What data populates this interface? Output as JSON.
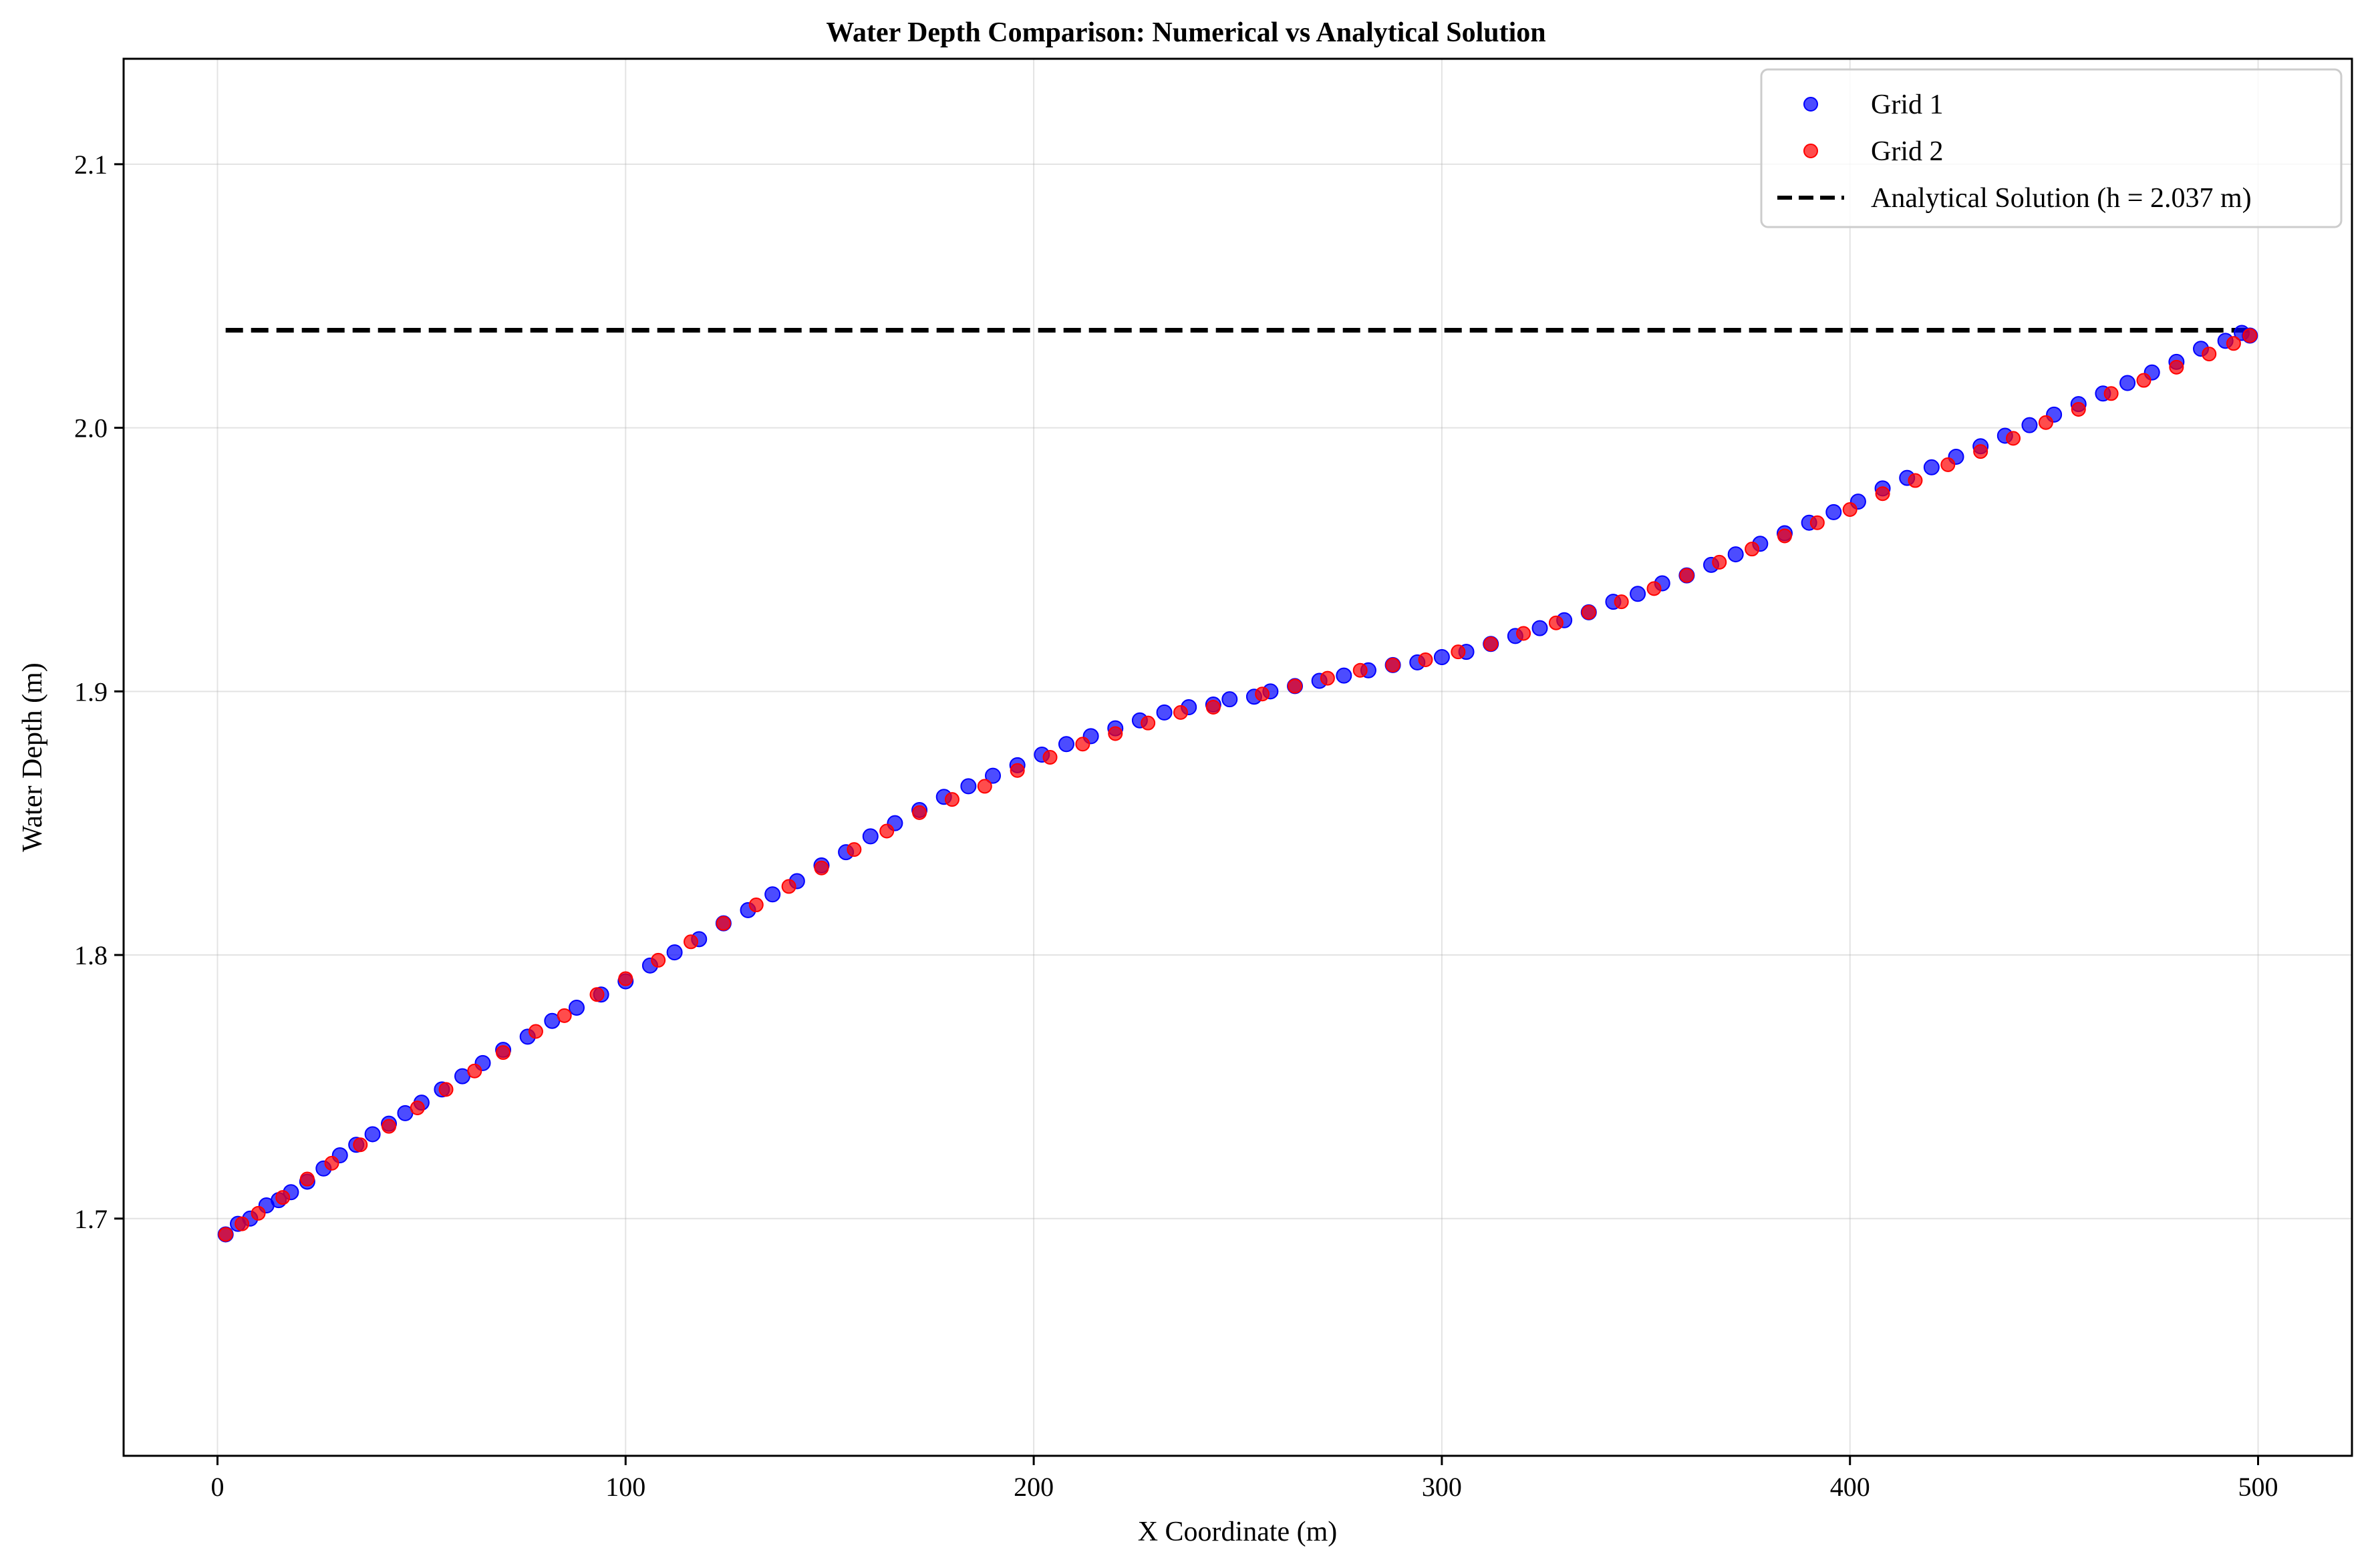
{
  "chart_data": {
    "type": "scatter",
    "title": "Water Depth Comparison: Numerical vs Analytical Solution",
    "xlabel": "X Coordinate (m)",
    "ylabel": "Water Depth (m)",
    "xlim": [
      -23,
      523
    ],
    "ylim": [
      1.61,
      2.14
    ],
    "xticks": [
      0,
      100,
      200,
      300,
      400,
      500
    ],
    "xtick_labels": [
      "0",
      "100",
      "200",
      "300",
      "400",
      "500"
    ],
    "yticks": [
      1.7,
      1.8,
      1.9,
      2.0,
      2.1
    ],
    "ytick_labels": [
      "1.7",
      "1.8",
      "1.9",
      "2.0",
      "2.1"
    ],
    "grid": true,
    "legend_position": "top-right",
    "analytical": {
      "name": "Analytical Solution (h = 2.037 m)",
      "y": 2.037,
      "x_range": [
        2,
        498
      ],
      "color": "#000000"
    },
    "series": [
      {
        "name": "Grid 1",
        "color": "#0000ff",
        "x": [
          2,
          5,
          8,
          12,
          15,
          18,
          22,
          26,
          30,
          34,
          38,
          42,
          46,
          50,
          55,
          60,
          65,
          70,
          76,
          82,
          88,
          94,
          100,
          106,
          112,
          118,
          124,
          130,
          136,
          142,
          148,
          154,
          160,
          166,
          172,
          178,
          184,
          190,
          196,
          202,
          208,
          214,
          220,
          226,
          232,
          238,
          244,
          248,
          254,
          258,
          264,
          270,
          276,
          282,
          288,
          294,
          300,
          306,
          312,
          318,
          324,
          330,
          336,
          342,
          348,
          354,
          360,
          366,
          372,
          378,
          384,
          390,
          396,
          402,
          408,
          414,
          420,
          426,
          432,
          438,
          444,
          450,
          456,
          462,
          468,
          474,
          480,
          486,
          492,
          496,
          498
        ],
        "y": [
          1.694,
          1.698,
          1.7,
          1.705,
          1.707,
          1.71,
          1.714,
          1.719,
          1.724,
          1.728,
          1.732,
          1.736,
          1.74,
          1.744,
          1.749,
          1.754,
          1.759,
          1.764,
          1.769,
          1.775,
          1.78,
          1.785,
          1.79,
          1.796,
          1.801,
          1.806,
          1.812,
          1.817,
          1.823,
          1.828,
          1.834,
          1.839,
          1.845,
          1.85,
          1.855,
          1.86,
          1.864,
          1.868,
          1.872,
          1.876,
          1.88,
          1.883,
          1.886,
          1.889,
          1.892,
          1.894,
          1.895,
          1.897,
          1.898,
          1.9,
          1.902,
          1.904,
          1.906,
          1.908,
          1.91,
          1.911,
          1.913,
          1.915,
          1.918,
          1.921,
          1.924,
          1.927,
          1.93,
          1.934,
          1.937,
          1.941,
          1.944,
          1.948,
          1.952,
          1.956,
          1.96,
          1.964,
          1.968,
          1.972,
          1.977,
          1.981,
          1.985,
          1.989,
          1.993,
          1.997,
          2.001,
          2.005,
          2.009,
          2.013,
          2.017,
          2.021,
          2.025,
          2.03,
          2.033,
          2.036,
          2.035
        ]
      },
      {
        "name": "Grid 2",
        "color": "#ff0000",
        "x": [
          2,
          6,
          10,
          16,
          22,
          28,
          35,
          42,
          49,
          56,
          63,
          70,
          78,
          85,
          93,
          100,
          108,
          116,
          124,
          132,
          140,
          148,
          156,
          164,
          172,
          180,
          188,
          196,
          204,
          212,
          220,
          228,
          236,
          244,
          256,
          264,
          272,
          280,
          288,
          296,
          304,
          312,
          320,
          328,
          336,
          344,
          352,
          360,
          368,
          376,
          384,
          392,
          400,
          408,
          416,
          424,
          432,
          440,
          448,
          456,
          464,
          472,
          480,
          488,
          494,
          498
        ],
        "y": [
          1.694,
          1.698,
          1.702,
          1.708,
          1.715,
          1.721,
          1.728,
          1.735,
          1.742,
          1.749,
          1.756,
          1.763,
          1.771,
          1.777,
          1.785,
          1.791,
          1.798,
          1.805,
          1.812,
          1.819,
          1.826,
          1.833,
          1.84,
          1.847,
          1.854,
          1.859,
          1.864,
          1.87,
          1.875,
          1.88,
          1.884,
          1.888,
          1.892,
          1.894,
          1.899,
          1.902,
          1.905,
          1.908,
          1.91,
          1.912,
          1.915,
          1.918,
          1.922,
          1.926,
          1.93,
          1.934,
          1.939,
          1.944,
          1.949,
          1.954,
          1.959,
          1.964,
          1.969,
          1.975,
          1.98,
          1.986,
          1.991,
          1.996,
          2.002,
          2.007,
          2.013,
          2.018,
          2.023,
          2.028,
          2.032,
          2.035
        ]
      }
    ]
  }
}
